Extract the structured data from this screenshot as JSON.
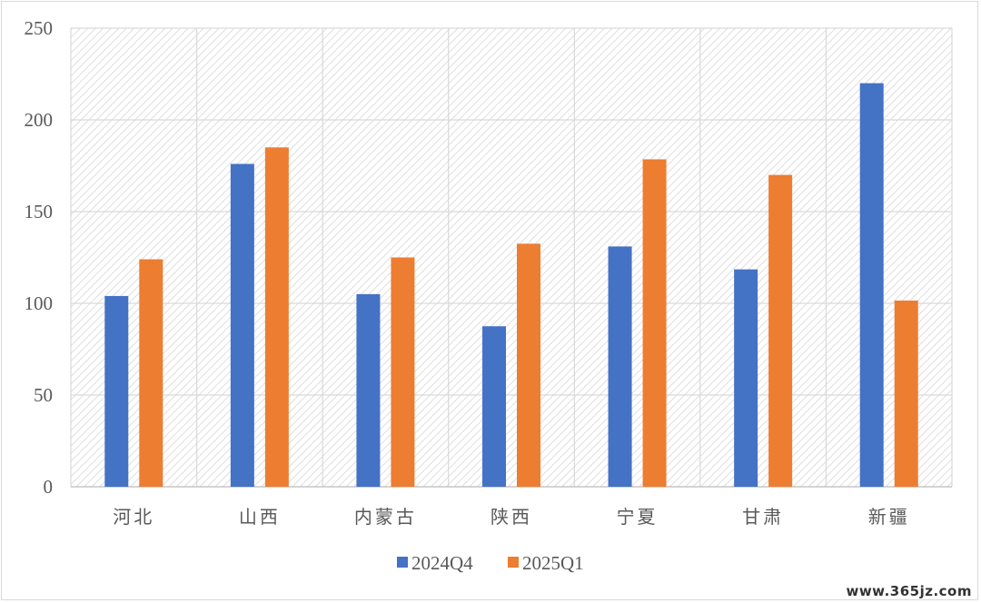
{
  "chart_data": {
    "type": "bar",
    "categories": [
      "河北",
      "山西",
      "内蒙古",
      "陕西",
      "宁夏",
      "甘肃",
      "新疆"
    ],
    "series": [
      {
        "name": "2024Q4",
        "color": "#4472C4",
        "values": [
          104,
          176,
          105,
          87.5,
          131,
          118.5,
          220
        ]
      },
      {
        "name": "2025Q1",
        "color": "#ED7D31",
        "values": [
          124,
          185,
          125,
          132.5,
          178.5,
          170,
          101.5
        ]
      }
    ],
    "yticks": [
      "0",
      "50",
      "100",
      "150",
      "200",
      "250"
    ],
    "ylim": [
      0,
      250
    ],
    "grid": true,
    "legend_position": "bottom",
    "plot_background": "hatched"
  },
  "watermark": "www.365jz.com"
}
